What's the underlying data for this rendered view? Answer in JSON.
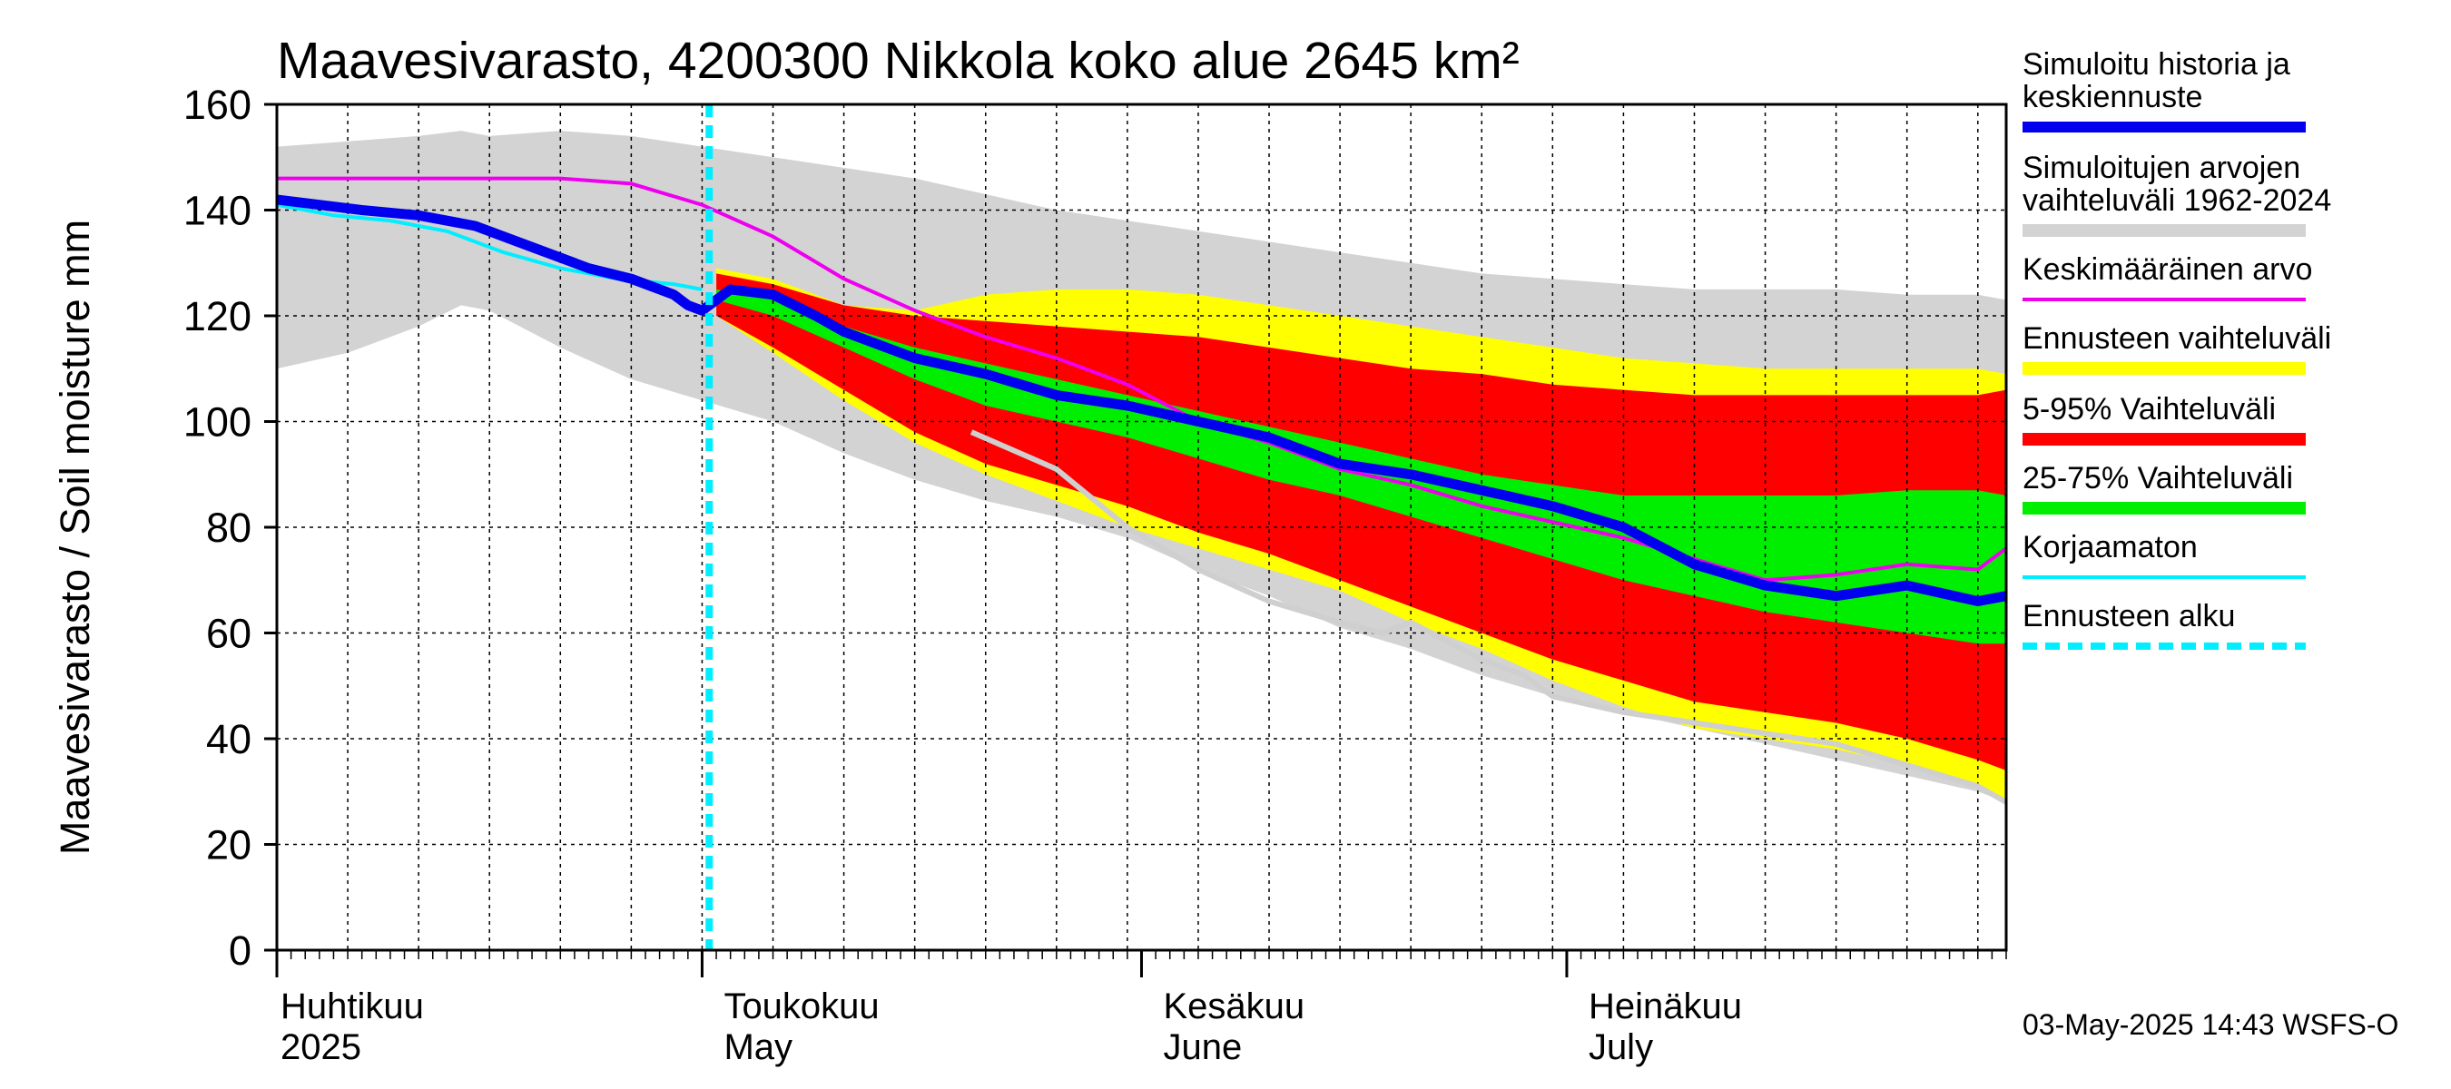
{
  "chart_data": {
    "type": "area",
    "title": "Maavesivarasto, 4200300 Nikkola koko alue 2645 km²",
    "ylabel": "Maavesivarasto / Soil moisture   mm",
    "ylim": [
      0,
      160
    ],
    "yticks": [
      0,
      20,
      40,
      60,
      80,
      100,
      120,
      140,
      160
    ],
    "x_day_range": [
      0,
      122
    ],
    "months": [
      {
        "day": 0,
        "fi": "Huhtikuu",
        "en": "2025"
      },
      {
        "day": 30,
        "fi": "Toukokuu",
        "en": "May"
      },
      {
        "day": 61,
        "fi": "Kesäkuu",
        "en": "June"
      },
      {
        "day": 91,
        "fi": "Heinäkuu",
        "en": "July"
      }
    ],
    "forecast_start_day": 30.5,
    "timestamp": "03-May-2025 14:43 WSFS-O",
    "legend": [
      {
        "label": "Simuloitu historia ja keskiennuste",
        "color": "#0000ee",
        "style": "thick"
      },
      {
        "label": "Simuloitujen arvojen vaihteluväli 1962-2024",
        "color": "#d3d3d3",
        "style": "band"
      },
      {
        "label": "Keskimääräinen arvo",
        "color": "#ee00ee",
        "style": "line"
      },
      {
        "label": "Ennusteen vaihteluväli",
        "color": "#ffff00",
        "style": "band"
      },
      {
        "label": "5-95% Vaihteluväli",
        "color": "#ff0000",
        "style": "band"
      },
      {
        "label": "25-75% Vaihteluväli",
        "color": "#00ee00",
        "style": "band"
      },
      {
        "label": "Korjaamaton",
        "color": "#00eeff",
        "style": "line"
      },
      {
        "label": "Ennusteen alku",
        "color": "#00eeff",
        "style": "dashed"
      }
    ],
    "series": {
      "hist_band_x": [
        0,
        5,
        10,
        13,
        15,
        20,
        25,
        30,
        35,
        40,
        45,
        50,
        55,
        60,
        65,
        70,
        75,
        80,
        85,
        90,
        95,
        100,
        105,
        110,
        115,
        120,
        122
      ],
      "hist_band_hi": [
        152,
        153,
        154,
        155,
        154,
        155,
        154,
        152,
        150,
        148,
        146,
        143,
        140,
        138,
        136,
        134,
        132,
        130,
        128,
        127,
        126,
        125,
        125,
        125,
        124,
        124,
        123
      ],
      "hist_band_lo": [
        110,
        113,
        118,
        122,
        121,
        114,
        108,
        104,
        100,
        94,
        89,
        85,
        82,
        78,
        72,
        67,
        61,
        57,
        52,
        48,
        45,
        42,
        39,
        36,
        33,
        30,
        28
      ],
      "fc_x": [
        31,
        35,
        40,
        45,
        50,
        55,
        60,
        65,
        70,
        75,
        80,
        85,
        90,
        95,
        100,
        105,
        110,
        115,
        120,
        122
      ],
      "fc_hi": [
        129,
        127,
        122,
        121,
        124,
        125,
        125,
        124,
        122,
        120,
        118,
        116,
        114,
        112,
        111,
        110,
        110,
        110,
        110,
        109
      ],
      "fc_lo": [
        120,
        113,
        104,
        96,
        90,
        85,
        80,
        76,
        72,
        68,
        62,
        57,
        51,
        46,
        42,
        40,
        38,
        35,
        31,
        28
      ],
      "p95": [
        128,
        126,
        122,
        120,
        119,
        118,
        117,
        116,
        114,
        112,
        110,
        109,
        107,
        106,
        105,
        105,
        105,
        105,
        105,
        106
      ],
      "p05": [
        120,
        114,
        106,
        98,
        92,
        88,
        84,
        79,
        75,
        70,
        65,
        60,
        55,
        51,
        47,
        45,
        43,
        40,
        36,
        34
      ],
      "p75": [
        125,
        123,
        118,
        114,
        111,
        108,
        105,
        102,
        99,
        96,
        93,
        90,
        88,
        86,
        86,
        86,
        86,
        87,
        87,
        86
      ],
      "p25": [
        123,
        120,
        114,
        108,
        103,
        100,
        97,
        93,
        89,
        86,
        82,
        78,
        74,
        70,
        67,
        64,
        62,
        60,
        58,
        58
      ],
      "median_x": [
        0,
        3,
        6,
        10,
        14,
        18,
        22,
        25,
        28,
        29,
        30,
        32,
        35,
        38,
        40,
        45,
        50,
        55,
        60,
        65,
        70,
        75,
        80,
        85,
        90,
        95,
        100,
        105,
        110,
        115,
        120,
        122
      ],
      "median": [
        142,
        141,
        140,
        139,
        137,
        133,
        129,
        127,
        124,
        122,
        121,
        125,
        124,
        120,
        117,
        112,
        109,
        105,
        103,
        100,
        97,
        92,
        90,
        87,
        84,
        80,
        73,
        69,
        67,
        69,
        66,
        67
      ],
      "mean_x": [
        0,
        5,
        10,
        15,
        20,
        25,
        30,
        35,
        40,
        45,
        50,
        55,
        60,
        65,
        70,
        75,
        80,
        85,
        90,
        95,
        100,
        105,
        110,
        115,
        120,
        122
      ],
      "mean": [
        146,
        146,
        146,
        146,
        146,
        145,
        141,
        135,
        127,
        121,
        116,
        112,
        107,
        100,
        96,
        91,
        88,
        84,
        81,
        78,
        74,
        70,
        71,
        73,
        72,
        76
      ],
      "uncorr_x": [
        0,
        4,
        8,
        12,
        16,
        20,
        24,
        28,
        30
      ],
      "uncorr": [
        141,
        139,
        138,
        136,
        132,
        129,
        127,
        126,
        125
      ],
      "min_scn_x": [
        49,
        55,
        60,
        65,
        70,
        75,
        78,
        80,
        85,
        88,
        90,
        95,
        100,
        105,
        110,
        115,
        120,
        122
      ],
      "min_scn": [
        98,
        91,
        80,
        72,
        66,
        62,
        60,
        62,
        55,
        52,
        48,
        45,
        43,
        41,
        39,
        35,
        31,
        28
      ]
    }
  }
}
